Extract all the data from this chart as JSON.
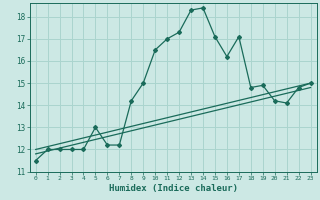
{
  "title": "",
  "xlabel": "Humidex (Indice chaleur)",
  "ylabel": "",
  "bg_color": "#cce8e4",
  "grid_color": "#aad4ce",
  "line_color": "#1a6b5a",
  "xlim": [
    -0.5,
    23.5
  ],
  "ylim": [
    11,
    18.6
  ],
  "yticks": [
    11,
    12,
    13,
    14,
    15,
    16,
    17,
    18
  ],
  "xticks": [
    0,
    1,
    2,
    3,
    4,
    5,
    6,
    7,
    8,
    9,
    10,
    11,
    12,
    13,
    14,
    15,
    16,
    17,
    18,
    19,
    20,
    21,
    22,
    23
  ],
  "curve1_x": [
    0,
    1,
    2,
    3,
    4,
    5,
    6,
    7,
    8,
    9,
    10,
    11,
    12,
    13,
    14,
    15,
    16,
    17,
    18,
    19,
    20,
    21,
    22,
    23
  ],
  "curve1_y": [
    11.5,
    12.0,
    12.0,
    12.0,
    12.0,
    13.0,
    12.2,
    12.2,
    14.2,
    15.0,
    16.5,
    17.0,
    17.3,
    18.3,
    18.4,
    17.1,
    16.2,
    17.1,
    14.8,
    14.9,
    14.2,
    14.1,
    14.8,
    15.0
  ],
  "curve2_x": [
    0,
    23
  ],
  "curve2_y": [
    12.0,
    15.0
  ],
  "curve3_x": [
    0,
    23
  ],
  "curve3_y": [
    11.8,
    14.8
  ],
  "marker": "D",
  "marker_size": 2.0,
  "linewidth": 0.9
}
